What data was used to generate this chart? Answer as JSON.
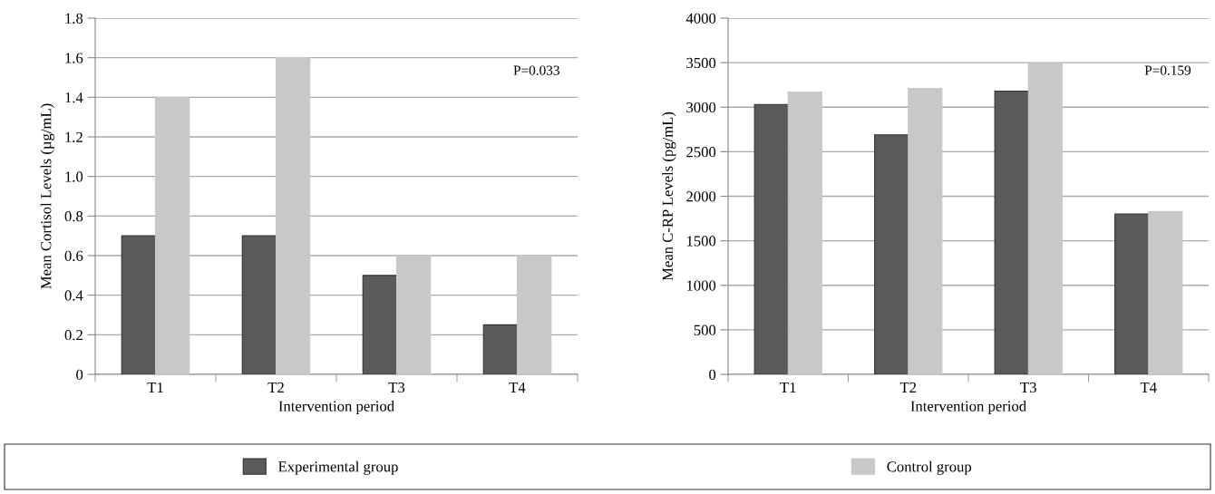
{
  "chart_data": [
    {
      "type": "bar",
      "categories": [
        "T1",
        "T2",
        "T3",
        "T4"
      ],
      "xlabel": "Intervention period",
      "ylabel": "Mean Cortisol Levels (µg/mL)",
      "series": [
        {
          "name": "Experimental group",
          "color": "#5a5a5a",
          "values": [
            0.7,
            0.7,
            0.5,
            0.25
          ]
        },
        {
          "name": "Control group",
          "color": "#c8c8c8",
          "values": [
            1.4,
            1.6,
            0.6,
            0.6
          ]
        }
      ],
      "ylim": [
        0,
        1.8
      ],
      "yticks": [
        {
          "value": 0,
          "label": "0"
        },
        {
          "value": 0.2,
          "label": "0.2"
        },
        {
          "value": 0.4,
          "label": "0.4"
        },
        {
          "value": 0.6,
          "label": "0.6"
        },
        {
          "value": 0.8,
          "label": "0.8"
        },
        {
          "value": 1.0,
          "label": "1.0"
        },
        {
          "value": 1.2,
          "label": "1.2"
        },
        {
          "value": 1.4,
          "label": "1.4"
        },
        {
          "value": 1.6,
          "label": "1.6"
        },
        {
          "value": 1.8,
          "label": "1.8"
        }
      ],
      "grid": "y",
      "legend": "bottom",
      "annotations": [
        "P=0.033"
      ]
    },
    {
      "type": "bar",
      "categories": [
        "T1",
        "T2",
        "T3",
        "T4"
      ],
      "xlabel": "Intervention period",
      "ylabel": "Mean C-RP Levels (pg/mL)",
      "series": [
        {
          "color": "#5a5a5a",
          "values": [
            3030,
            2690,
            3180,
            1800
          ]
        },
        {
          "color": "#c8c8c8",
          "values": [
            3170,
            3210,
            3490,
            1830
          ]
        }
      ],
      "ylim": [
        0,
        4000
      ],
      "yticks": [
        0,
        500,
        1000,
        1500,
        2000,
        2500,
        3000,
        3500,
        4000
      ],
      "grid": "y",
      "annotations": [
        "P=0.159"
      ]
    }
  ]
}
